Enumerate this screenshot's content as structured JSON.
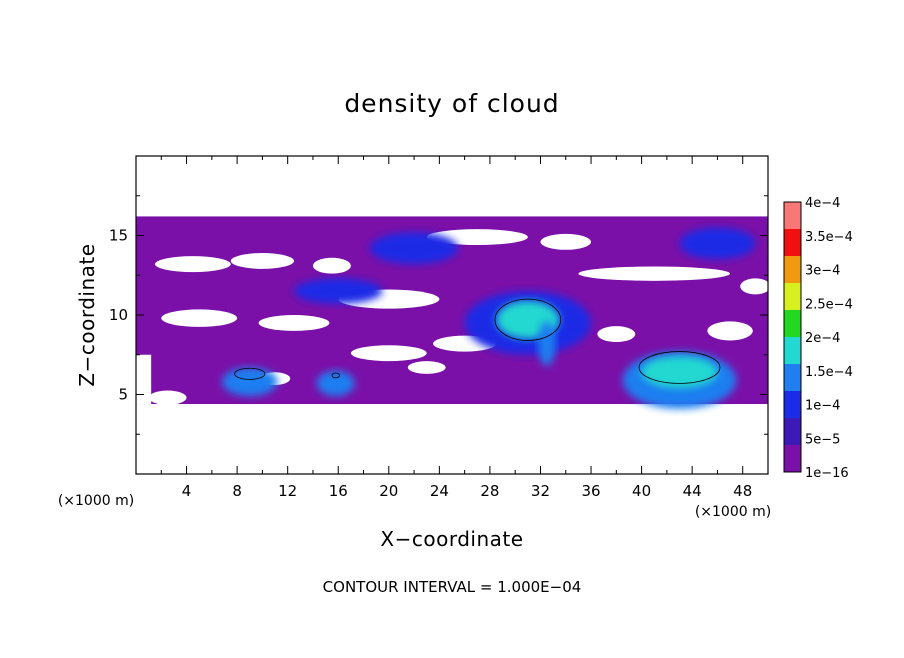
{
  "chart_data": {
    "type": "heatmap",
    "title": "density of cloud",
    "xlabel": "X−coordinate",
    "ylabel": "Z−coordinate",
    "x_unit": "(×1000 m)",
    "y_unit": "(×1000 m)",
    "xlim": [
      0,
      50
    ],
    "ylim": [
      0,
      20
    ],
    "x_ticks": [
      4,
      8,
      12,
      16,
      20,
      24,
      28,
      32,
      36,
      40,
      44,
      48
    ],
    "y_ticks": [
      5,
      10,
      15
    ],
    "colorbar": {
      "levels": [
        1e-16,
        5e-05,
        0.0001,
        0.00015,
        0.0002,
        0.00025,
        0.0003,
        0.00035,
        0.0004
      ],
      "labels": [
        "1e−16",
        "5e−5",
        "1e−4",
        "1.5e−4",
        "2e−4",
        "2.5e−4",
        "3e−4",
        "3.5e−4",
        "4e−4"
      ],
      "colors": [
        "#7a10a8",
        "#3d1ab8",
        "#1a2ce6",
        "#1f7ef0",
        "#22d8d0",
        "#22d820",
        "#d8f020",
        "#f09a10",
        "#f01010",
        "#f87878"
      ]
    },
    "regions": [
      {
        "level": 7e-05,
        "cx": 16,
        "cz": 11.5,
        "rx": 3.5,
        "rz": 0.8
      },
      {
        "level": 8e-05,
        "cx": 22,
        "cz": 14.2,
        "rx": 3.5,
        "rz": 1.0
      },
      {
        "level": 7e-05,
        "cx": 46,
        "cz": 14.5,
        "rx": 3,
        "rz": 1.0
      },
      {
        "level": 9e-05,
        "cx": 31,
        "cz": 9.5,
        "rx": 5,
        "rz": 2.0
      },
      {
        "level": 0.00015,
        "cx": 31,
        "cz": 9.7,
        "rx": 2.5,
        "rz": 1.2
      },
      {
        "level": 0.00012,
        "cx": 32.5,
        "cz": 8.2,
        "rx": 0.7,
        "rz": 1.4
      },
      {
        "level": 0.00011,
        "cx": 9,
        "cz": 5.8,
        "rx": 2.2,
        "rz": 0.9
      },
      {
        "level": 0.0001,
        "cx": 15.8,
        "cz": 5.7,
        "rx": 1.5,
        "rz": 0.8
      },
      {
        "level": 0.0001,
        "cx": 43,
        "cz": 5.9,
        "rx": 4.5,
        "rz": 1.8
      },
      {
        "level": 0.00016,
        "cx": 43,
        "cz": 6.4,
        "rx": 3,
        "rz": 1.0
      }
    ],
    "contour_interval_text": "CONTOUR INTERVAL = 1.000E−04"
  }
}
